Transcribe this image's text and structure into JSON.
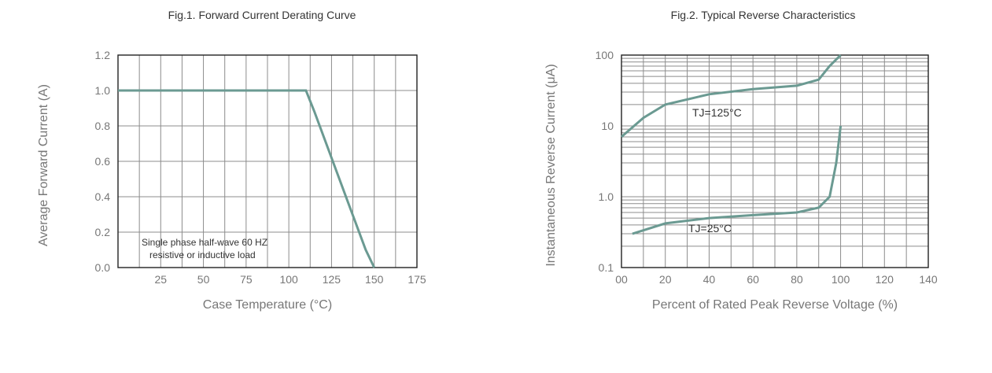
{
  "chart_data": [
    {
      "type": "line",
      "title": "Fig.1. Forward Current Derating Curve",
      "xlabel": "Case Temperature (°C)",
      "ylabel": "Average Forward Current (A)",
      "xlim": [
        0,
        175
      ],
      "ylim": [
        0,
        1.2
      ],
      "x_ticks": [
        "25",
        "50",
        "75",
        "100",
        "125",
        "150",
        "175"
      ],
      "y_ticks": [
        "0.0",
        "0.2",
        "0.4",
        "0.6",
        "0.8",
        "1.0",
        "1.2"
      ],
      "grid": true,
      "series": [
        {
          "x": [
            0,
            110,
            115,
            125,
            135,
            145,
            150
          ],
          "y": [
            1.0,
            1.0,
            0.88,
            0.62,
            0.36,
            0.1,
            0.0
          ]
        }
      ],
      "annotations": [
        "Single phase half-wave 60 HZ",
        "resistive or inductive load"
      ]
    },
    {
      "type": "line",
      "title": "Fig.2. Typical Reverse Characteristics",
      "xlabel": "Percent of Rated Peak Reverse Voltage (%)",
      "ylabel": "Instantaneous Reverse Current (μA)",
      "x_scale": "linear",
      "y_scale": "log",
      "xlim": [
        0,
        140
      ],
      "ylim": [
        0.1,
        100
      ],
      "x_ticks": [
        "00",
        "20",
        "40",
        "60",
        "80",
        "100",
        "120",
        "140"
      ],
      "y_ticks": [
        "0.1",
        "1.0",
        "10",
        "100"
      ],
      "grid": true,
      "series": [
        {
          "name": "TJ=125°C",
          "x": [
            0,
            10,
            20,
            40,
            60,
            80,
            90,
            95,
            100
          ],
          "y": [
            7,
            13,
            20,
            28,
            33,
            37,
            45,
            70,
            100
          ]
        },
        {
          "name": "TJ=25°C",
          "x": [
            5,
            20,
            40,
            60,
            80,
            90,
            95,
            98,
            100
          ],
          "y": [
            0.3,
            0.42,
            0.5,
            0.55,
            0.6,
            0.7,
            1.0,
            3,
            10
          ]
        }
      ]
    }
  ],
  "colors": {
    "curve": "#6b9a92",
    "grid": "#8c8c8c",
    "frame": "#222222"
  }
}
